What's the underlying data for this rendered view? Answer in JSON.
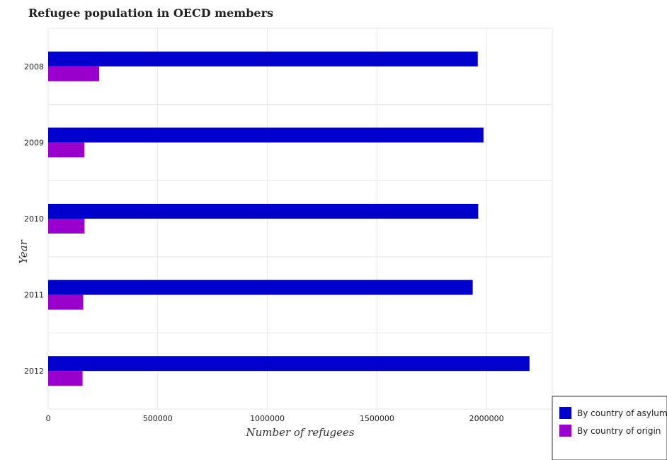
{
  "chart_data": {
    "type": "bar",
    "orientation": "horizontal",
    "title": "Refugee population in OECD members",
    "xlabel": "Number of refugees",
    "ylabel": "Year",
    "categories": [
      "2008",
      "2009",
      "2010",
      "2011",
      "2012"
    ],
    "series": [
      {
        "name": "By country of asylum",
        "color": "#0000cc",
        "values": [
          1960000,
          1986000,
          1962000,
          1937000,
          2196000
        ]
      },
      {
        "name": "By country of origin",
        "color": "#9900cc",
        "values": [
          233000,
          165000,
          166000,
          160000,
          157000
        ]
      }
    ],
    "xlim": [
      0,
      2300000
    ],
    "xticks": [
      0,
      500000,
      1000000,
      1500000,
      2000000
    ],
    "xtick_labels": [
      "0",
      "500000",
      "1000000",
      "1500000",
      "2000000"
    ],
    "grid": true,
    "legend_position": "bottom-right"
  }
}
